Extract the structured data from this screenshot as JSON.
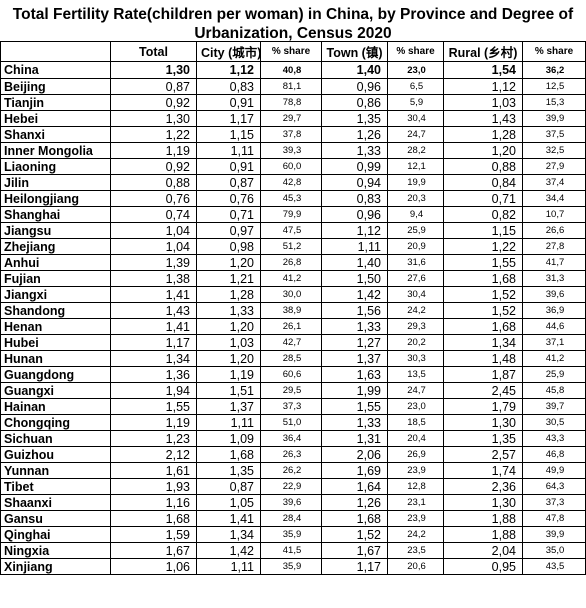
{
  "title_line1": "Total Fertility Rate(children per woman) in China, by Province and Degree of",
  "title_line2": "Urbanization, Census 2020",
  "headers": {
    "blank": "",
    "total": "Total",
    "city": "City (城市)",
    "city_share": "% share",
    "town": "Town (镇)",
    "town_share": "% share",
    "rural": "Rural (乡村)",
    "rural_share": "% share"
  },
  "rows": [
    [
      "China",
      "1,30",
      "1,12",
      "40,8",
      "1,40",
      "23,0",
      "1,54",
      "36,2"
    ],
    [
      "Beijing",
      "0,87",
      "0,83",
      "81,1",
      "0,96",
      "6,5",
      "1,12",
      "12,5"
    ],
    [
      "Tianjin",
      "0,92",
      "0,91",
      "78,8",
      "0,86",
      "5,9",
      "1,03",
      "15,3"
    ],
    [
      "Hebei",
      "1,30",
      "1,17",
      "29,7",
      "1,35",
      "30,4",
      "1,43",
      "39,9"
    ],
    [
      "Shanxi",
      "1,22",
      "1,15",
      "37,8",
      "1,26",
      "24,7",
      "1,28",
      "37,5"
    ],
    [
      "Inner Mongolia",
      "1,19",
      "1,11",
      "39,3",
      "1,33",
      "28,2",
      "1,20",
      "32,5"
    ],
    [
      "Liaoning",
      "0,92",
      "0,91",
      "60,0",
      "0,99",
      "12,1",
      "0,88",
      "27,9"
    ],
    [
      "Jilin",
      "0,88",
      "0,87",
      "42,8",
      "0,94",
      "19,9",
      "0,84",
      "37,4"
    ],
    [
      "Heilongjiang",
      "0,76",
      "0,76",
      "45,3",
      "0,83",
      "20,3",
      "0,71",
      "34,4"
    ],
    [
      "Shanghai",
      "0,74",
      "0,71",
      "79,9",
      "0,96",
      "9,4",
      "0,82",
      "10,7"
    ],
    [
      "Jiangsu",
      "1,04",
      "0,97",
      "47,5",
      "1,12",
      "25,9",
      "1,15",
      "26,6"
    ],
    [
      "Zhejiang",
      "1,04",
      "0,98",
      "51,2",
      "1,11",
      "20,9",
      "1,22",
      "27,8"
    ],
    [
      "Anhui",
      "1,39",
      "1,20",
      "26,8",
      "1,40",
      "31,6",
      "1,55",
      "41,7"
    ],
    [
      "Fujian",
      "1,38",
      "1,21",
      "41,2",
      "1,50",
      "27,6",
      "1,68",
      "31,3"
    ],
    [
      "Jiangxi",
      "1,41",
      "1,28",
      "30,0",
      "1,42",
      "30,4",
      "1,52",
      "39,6"
    ],
    [
      "Shandong",
      "1,43",
      "1,33",
      "38,9",
      "1,56",
      "24,2",
      "1,52",
      "36,9"
    ],
    [
      "Henan",
      "1,41",
      "1,20",
      "26,1",
      "1,33",
      "29,3",
      "1,68",
      "44,6"
    ],
    [
      "Hubei",
      "1,17",
      "1,03",
      "42,7",
      "1,27",
      "20,2",
      "1,34",
      "37,1"
    ],
    [
      "Hunan",
      "1,34",
      "1,20",
      "28,5",
      "1,37",
      "30,3",
      "1,48",
      "41,2"
    ],
    [
      "Guangdong",
      "1,36",
      "1,19",
      "60,6",
      "1,63",
      "13,5",
      "1,87",
      "25,9"
    ],
    [
      "Guangxi",
      "1,94",
      "1,51",
      "29,5",
      "1,99",
      "24,7",
      "2,45",
      "45,8"
    ],
    [
      "Hainan",
      "1,55",
      "1,37",
      "37,3",
      "1,55",
      "23,0",
      "1,79",
      "39,7"
    ],
    [
      "Chongqing",
      "1,19",
      "1,11",
      "51,0",
      "1,33",
      "18,5",
      "1,30",
      "30,5"
    ],
    [
      "Sichuan",
      "1,23",
      "1,09",
      "36,4",
      "1,31",
      "20,4",
      "1,35",
      "43,3"
    ],
    [
      "Guizhou",
      "2,12",
      "1,68",
      "26,3",
      "2,06",
      "26,9",
      "2,57",
      "46,8"
    ],
    [
      "Yunnan",
      "1,61",
      "1,35",
      "26,2",
      "1,69",
      "23,9",
      "1,74",
      "49,9"
    ],
    [
      "Tibet",
      "1,93",
      "0,87",
      "22,9",
      "1,64",
      "12,8",
      "2,36",
      "64,3"
    ],
    [
      "Shaanxi",
      "1,16",
      "1,05",
      "39,6",
      "1,26",
      "23,1",
      "1,30",
      "37,3"
    ],
    [
      "Gansu",
      "1,68",
      "1,41",
      "28,4",
      "1,68",
      "23,9",
      "1,88",
      "47,8"
    ],
    [
      "Qinghai",
      "1,59",
      "1,34",
      "35,9",
      "1,52",
      "24,2",
      "1,88",
      "39,9"
    ],
    [
      "Ningxia",
      "1,67",
      "1,42",
      "41,5",
      "1,67",
      "23,5",
      "2,04",
      "35,0"
    ],
    [
      "Xinjiang",
      "1,06",
      "1,11",
      "35,9",
      "1,17",
      "20,6",
      "0,95",
      "43,5"
    ]
  ]
}
